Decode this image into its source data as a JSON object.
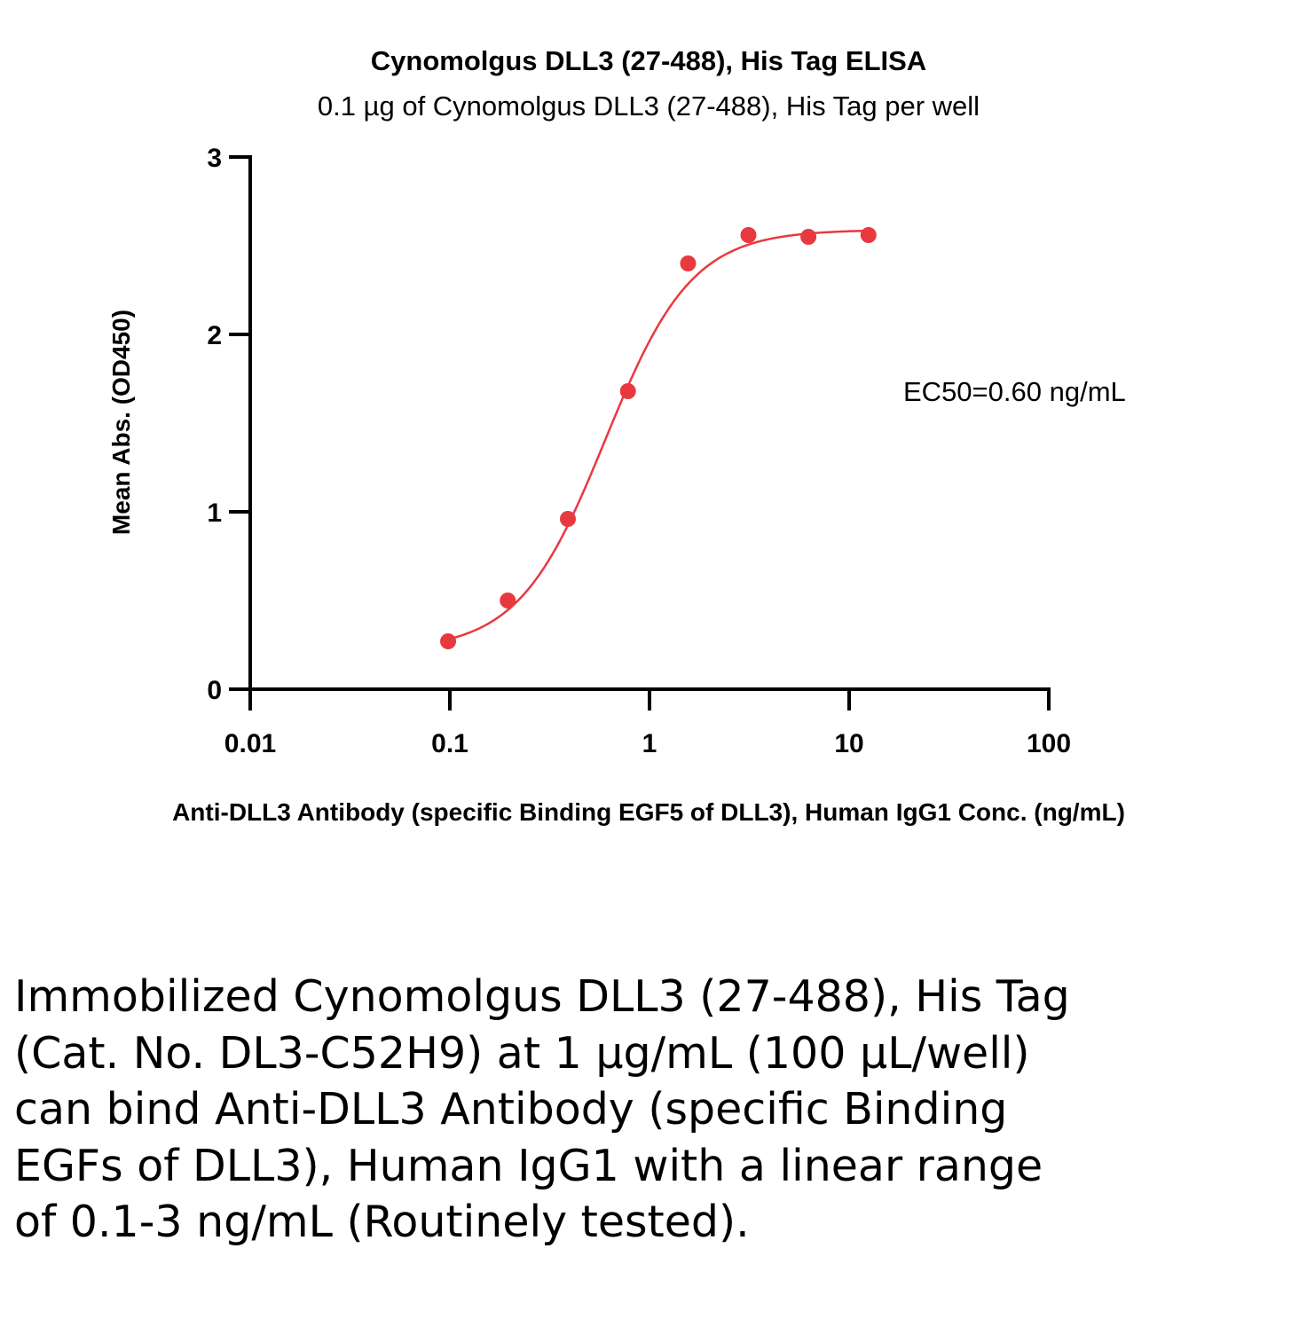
{
  "chart_data": {
    "type": "scatter",
    "title": "Cynomolgus DLL3 (27-488), His Tag ELISA",
    "subtitle": "0.1 µg of Cynomolgus DLL3 (27-488), His Tag per well",
    "xlabel": "Anti-DLL3 Antibody (specific Binding EGF5 of DLL3), Human IgG1 Conc. (ng/mL)",
    "ylabel": "Mean Abs. (OD450)",
    "x_scale": "log",
    "xlim": [
      0.01,
      100
    ],
    "ylim": [
      0,
      3
    ],
    "x_ticks": [
      "0.01",
      "0.1",
      "1",
      "10",
      "100"
    ],
    "y_ticks": [
      "0",
      "1",
      "2",
      "3"
    ],
    "series": [
      {
        "color": "#e8393f",
        "x": [
          0.098,
          0.195,
          0.39,
          0.78,
          1.56,
          3.13,
          6.25,
          12.5
        ],
        "y": [
          0.27,
          0.5,
          0.96,
          1.68,
          2.4,
          2.56,
          2.55,
          2.56
        ]
      }
    ],
    "fit": {
      "type": "4PL",
      "bottom": 0.22,
      "top": 2.59,
      "ec50": 0.6,
      "hill": 2.0,
      "x_range": [
        0.098,
        12.5
      ]
    },
    "annotation": "EC50=0.60 ng/mL",
    "grid": false
  },
  "caption": "Immobilized Cynomolgus DLL3 (27-488), His Tag (Cat. No. DL3-C52H9) at 1 µg/mL (100 µL/well) can bind Anti-DLL3 Antibody (specific Binding EGFs of DLL3), Human IgG1 with a linear range of 0.1-3 ng/mL (Routinely tested)."
}
